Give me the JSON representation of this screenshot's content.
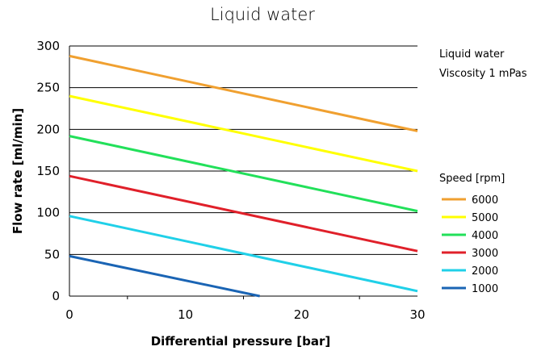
{
  "chart_data": {
    "type": "line",
    "title": "Liquid water",
    "xlabel": "Differential pressure [bar]",
    "ylabel": "Flow rate [ml/min]",
    "xlim": [
      0,
      30
    ],
    "ylim": [
      0,
      300
    ],
    "x_ticks": [
      "0",
      "10",
      "20",
      "30"
    ],
    "y_ticks": [
      "0",
      "50",
      "100",
      "150",
      "200",
      "250",
      "300"
    ],
    "grid": "horizontal",
    "annotations": [
      "Liquid water",
      "Viscosity  1 mPas"
    ],
    "legend_title": "Speed [rpm]",
    "legend_position": "right",
    "series": [
      {
        "name": "6000",
        "color": "#f0a030",
        "points": [
          [
            0,
            288
          ],
          [
            30,
            198
          ]
        ]
      },
      {
        "name": "5000",
        "color": "#ffff00",
        "points": [
          [
            0,
            240
          ],
          [
            30,
            150
          ]
        ]
      },
      {
        "name": "4000",
        "color": "#22e05a",
        "points": [
          [
            0,
            192
          ],
          [
            30,
            102
          ]
        ]
      },
      {
        "name": "3000",
        "color": "#e0202a",
        "points": [
          [
            0,
            144
          ],
          [
            30,
            54
          ]
        ]
      },
      {
        "name": "2000",
        "color": "#20d0e8",
        "points": [
          [
            0,
            96
          ],
          [
            30,
            6
          ]
        ]
      },
      {
        "name": "1000",
        "color": "#1a64b4",
        "points": [
          [
            0,
            48
          ],
          [
            16.4,
            0
          ]
        ]
      }
    ]
  }
}
